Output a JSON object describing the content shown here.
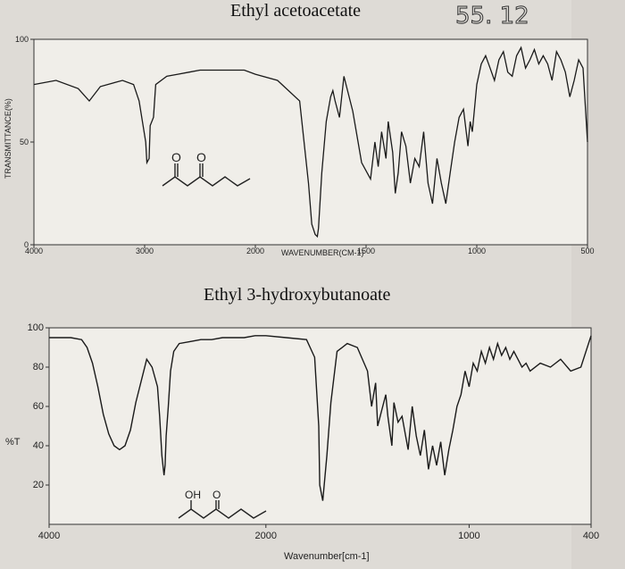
{
  "handwritten_note": "55. 12",
  "chart_data": [
    {
      "type": "line",
      "title": "Ethyl acetoacetate",
      "xlabel": "WAVENUMBER(CM-1)",
      "ylabel": "TRANSMITTANCE(%)",
      "x_ticks": [
        "4000",
        "3000",
        "2000",
        "1500",
        "1000",
        "500"
      ],
      "y_ticks": [
        "100",
        "50",
        "0"
      ],
      "xlim": [
        4000,
        500
      ],
      "ylim": [
        0,
        100
      ],
      "structure_labels": [
        "O",
        "O"
      ],
      "series": [
        {
          "x": [
            4000,
            3800,
            3600,
            3500,
            3400,
            3200,
            3100,
            3050,
            2990,
            2980,
            2960,
            2950,
            2920,
            2900,
            2800,
            2700,
            2600,
            2500,
            2400,
            2300,
            2200,
            2100,
            2000,
            1900,
            1800,
            1760,
            1745,
            1730,
            1720,
            1715,
            1700,
            1680,
            1660,
            1650,
            1640,
            1620,
            1600,
            1560,
            1520,
            1480,
            1460,
            1445,
            1430,
            1410,
            1400,
            1380,
            1368,
            1355,
            1340,
            1320,
            1300,
            1280,
            1260,
            1240,
            1220,
            1200,
            1180,
            1160,
            1140,
            1120,
            1100,
            1080,
            1060,
            1040,
            1030,
            1020,
            1000,
            980,
            960,
            940,
            920,
            900,
            880,
            860,
            840,
            820,
            800,
            780,
            760,
            740,
            720,
            700,
            680,
            660,
            640,
            620,
            600,
            580,
            560,
            540,
            520,
            500
          ],
          "y": [
            78,
            80,
            76,
            70,
            77,
            80,
            78,
            70,
            50,
            40,
            42,
            58,
            62,
            78,
            82,
            83,
            84,
            85,
            85,
            85,
            85,
            85,
            83,
            80,
            70,
            30,
            10,
            5,
            4,
            8,
            35,
            60,
            72,
            75,
            70,
            62,
            82,
            65,
            40,
            32,
            50,
            38,
            55,
            42,
            60,
            45,
            25,
            35,
            55,
            48,
            30,
            42,
            38,
            55,
            30,
            20,
            42,
            30,
            20,
            35,
            50,
            62,
            66,
            48,
            60,
            55,
            78,
            88,
            92,
            86,
            80,
            90,
            94,
            84,
            82,
            92,
            96,
            86,
            90,
            95,
            88,
            92,
            88,
            80,
            94,
            90,
            84,
            72,
            80,
            90,
            86,
            50
          ]
        }
      ]
    },
    {
      "type": "line",
      "title": "Ethyl 3-hydroxybutanoate",
      "xlabel": "Wavenumber[cm-1]",
      "ylabel": "%T",
      "x_ticks": [
        "4000",
        "2000",
        "1000",
        "400"
      ],
      "y_ticks": [
        "100",
        "80",
        "60",
        "40",
        "20"
      ],
      "xlim": [
        4000,
        400
      ],
      "ylim": [
        0,
        100
      ],
      "structure_labels": [
        "OH",
        "O"
      ],
      "series": [
        {
          "x": [
            4000,
            3900,
            3800,
            3700,
            3650,
            3600,
            3550,
            3500,
            3450,
            3400,
            3350,
            3300,
            3250,
            3200,
            3100,
            3050,
            3000,
            2980,
            2960,
            2940,
            2930,
            2920,
            2900,
            2880,
            2850,
            2800,
            2700,
            2600,
            2500,
            2400,
            2300,
            2200,
            2100,
            2000,
            1900,
            1800,
            1760,
            1740,
            1735,
            1720,
            1700,
            1680,
            1650,
            1600,
            1550,
            1500,
            1480,
            1460,
            1450,
            1430,
            1410,
            1400,
            1380,
            1370,
            1350,
            1330,
            1300,
            1280,
            1260,
            1240,
            1220,
            1200,
            1180,
            1160,
            1140,
            1120,
            1100,
            1080,
            1060,
            1040,
            1020,
            1000,
            980,
            960,
            940,
            920,
            900,
            880,
            860,
            840,
            820,
            800,
            780,
            760,
            740,
            720,
            700,
            650,
            600,
            550,
            500,
            450,
            400
          ],
          "y": [
            95,
            95,
            95,
            94,
            90,
            82,
            70,
            56,
            46,
            40,
            38,
            40,
            48,
            62,
            84,
            80,
            70,
            55,
            35,
            25,
            30,
            45,
            60,
            78,
            88,
            92,
            93,
            94,
            94,
            95,
            95,
            95,
            96,
            96,
            95,
            94,
            85,
            50,
            20,
            12,
            35,
            62,
            88,
            92,
            90,
            78,
            60,
            72,
            50,
            58,
            66,
            55,
            40,
            62,
            52,
            55,
            38,
            60,
            45,
            35,
            48,
            28,
            40,
            30,
            42,
            25,
            38,
            48,
            60,
            66,
            78,
            70,
            82,
            78,
            88,
            82,
            90,
            84,
            92,
            86,
            90,
            84,
            88,
            84,
            80,
            82,
            78,
            82,
            80,
            84,
            78,
            80,
            96
          ]
        }
      ]
    }
  ]
}
